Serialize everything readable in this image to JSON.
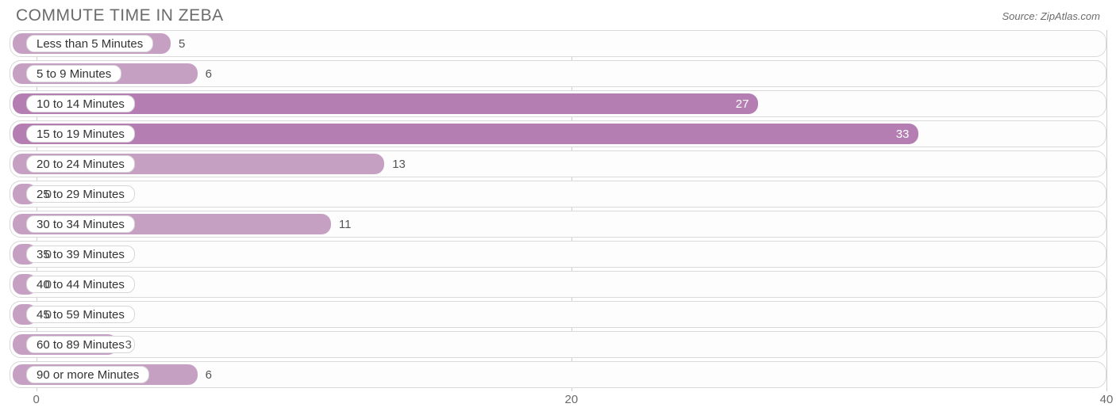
{
  "header": {
    "title": "COMMUTE TIME IN ZEBA",
    "source_prefix": "Source: ",
    "source_name": "ZipAtlas.com"
  },
  "chart": {
    "type": "bar-horizontal",
    "background_color": "#ffffff",
    "row_border_color": "#d9d9d9",
    "row_bg": "#fdfdfd",
    "grid_color": "#cfcfcf",
    "bar_color": "#c6a0c3",
    "bar_color_strong": "#b47eb3",
    "label_pill_bg": "#ffffff",
    "label_pill_border": "#d7d7d7",
    "value_color_outside": "#555555",
    "value_color_inside": "#ffffff",
    "category_fontsize": 15,
    "value_fontsize": 15,
    "title_fontsize": 21,
    "title_color": "#6b6b6b",
    "xmin": -1,
    "xmax": 40,
    "xticks": [
      0,
      20,
      40
    ],
    "strong_threshold": 25,
    "rows": [
      {
        "label": "Less than 5 Minutes",
        "value": 5
      },
      {
        "label": "5 to 9 Minutes",
        "value": 6
      },
      {
        "label": "10 to 14 Minutes",
        "value": 27
      },
      {
        "label": "15 to 19 Minutes",
        "value": 33
      },
      {
        "label": "20 to 24 Minutes",
        "value": 13
      },
      {
        "label": "25 to 29 Minutes",
        "value": 0
      },
      {
        "label": "30 to 34 Minutes",
        "value": 11
      },
      {
        "label": "35 to 39 Minutes",
        "value": 0
      },
      {
        "label": "40 to 44 Minutes",
        "value": 0
      },
      {
        "label": "45 to 59 Minutes",
        "value": 0
      },
      {
        "label": "60 to 89 Minutes",
        "value": 3
      },
      {
        "label": "90 or more Minutes",
        "value": 6
      }
    ]
  }
}
